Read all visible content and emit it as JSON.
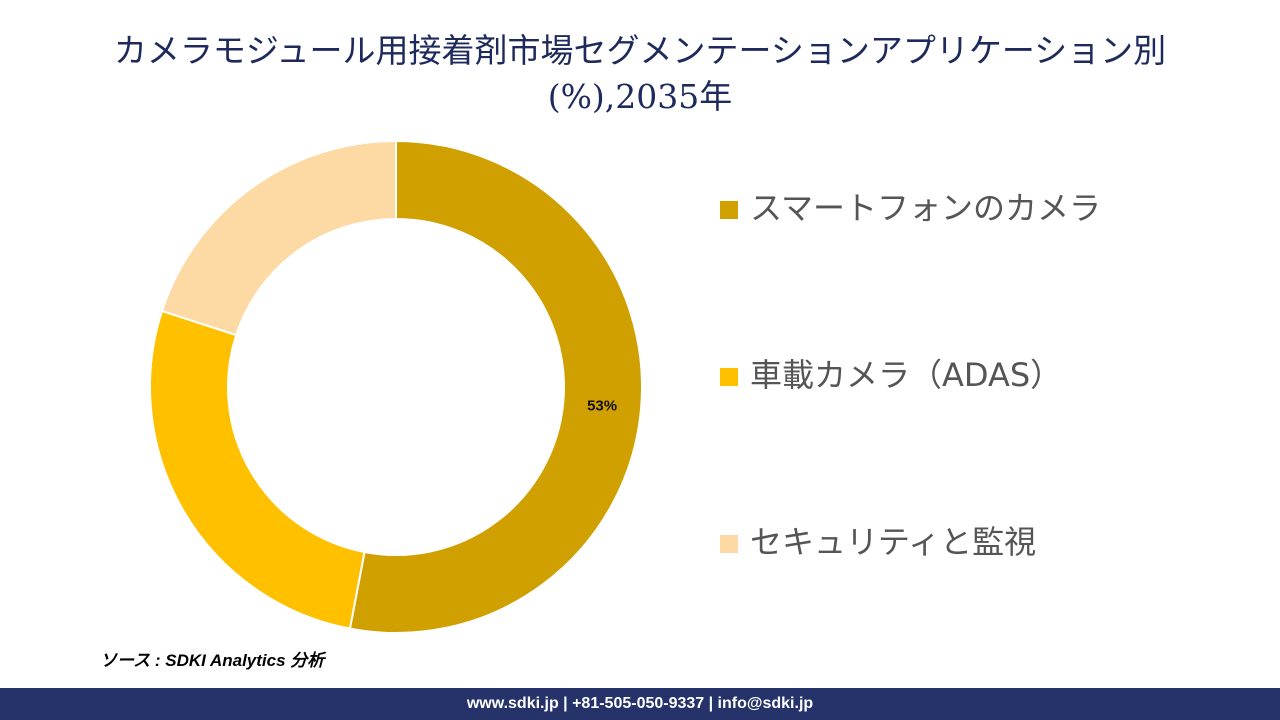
{
  "chart_data": {
    "type": "donut",
    "title": "カメラモジュール用接着剤市場セグメンテーションアプリケーション別 (%),2035年",
    "categories": [
      "スマートフォンのカメラ",
      "車載カメラ（ADAS）",
      "セキュリティと監視"
    ],
    "values": [
      53,
      27,
      20
    ],
    "value_labels": [
      "53%",
      null,
      null
    ],
    "colors": [
      "#cfa000",
      "#ffc000",
      "#fdd9a3"
    ],
    "source": "ソース : SDKI Analytics 分析",
    "footer": "www.sdki.jp | +81-505-050-9337 | info@sdki.jp"
  }
}
